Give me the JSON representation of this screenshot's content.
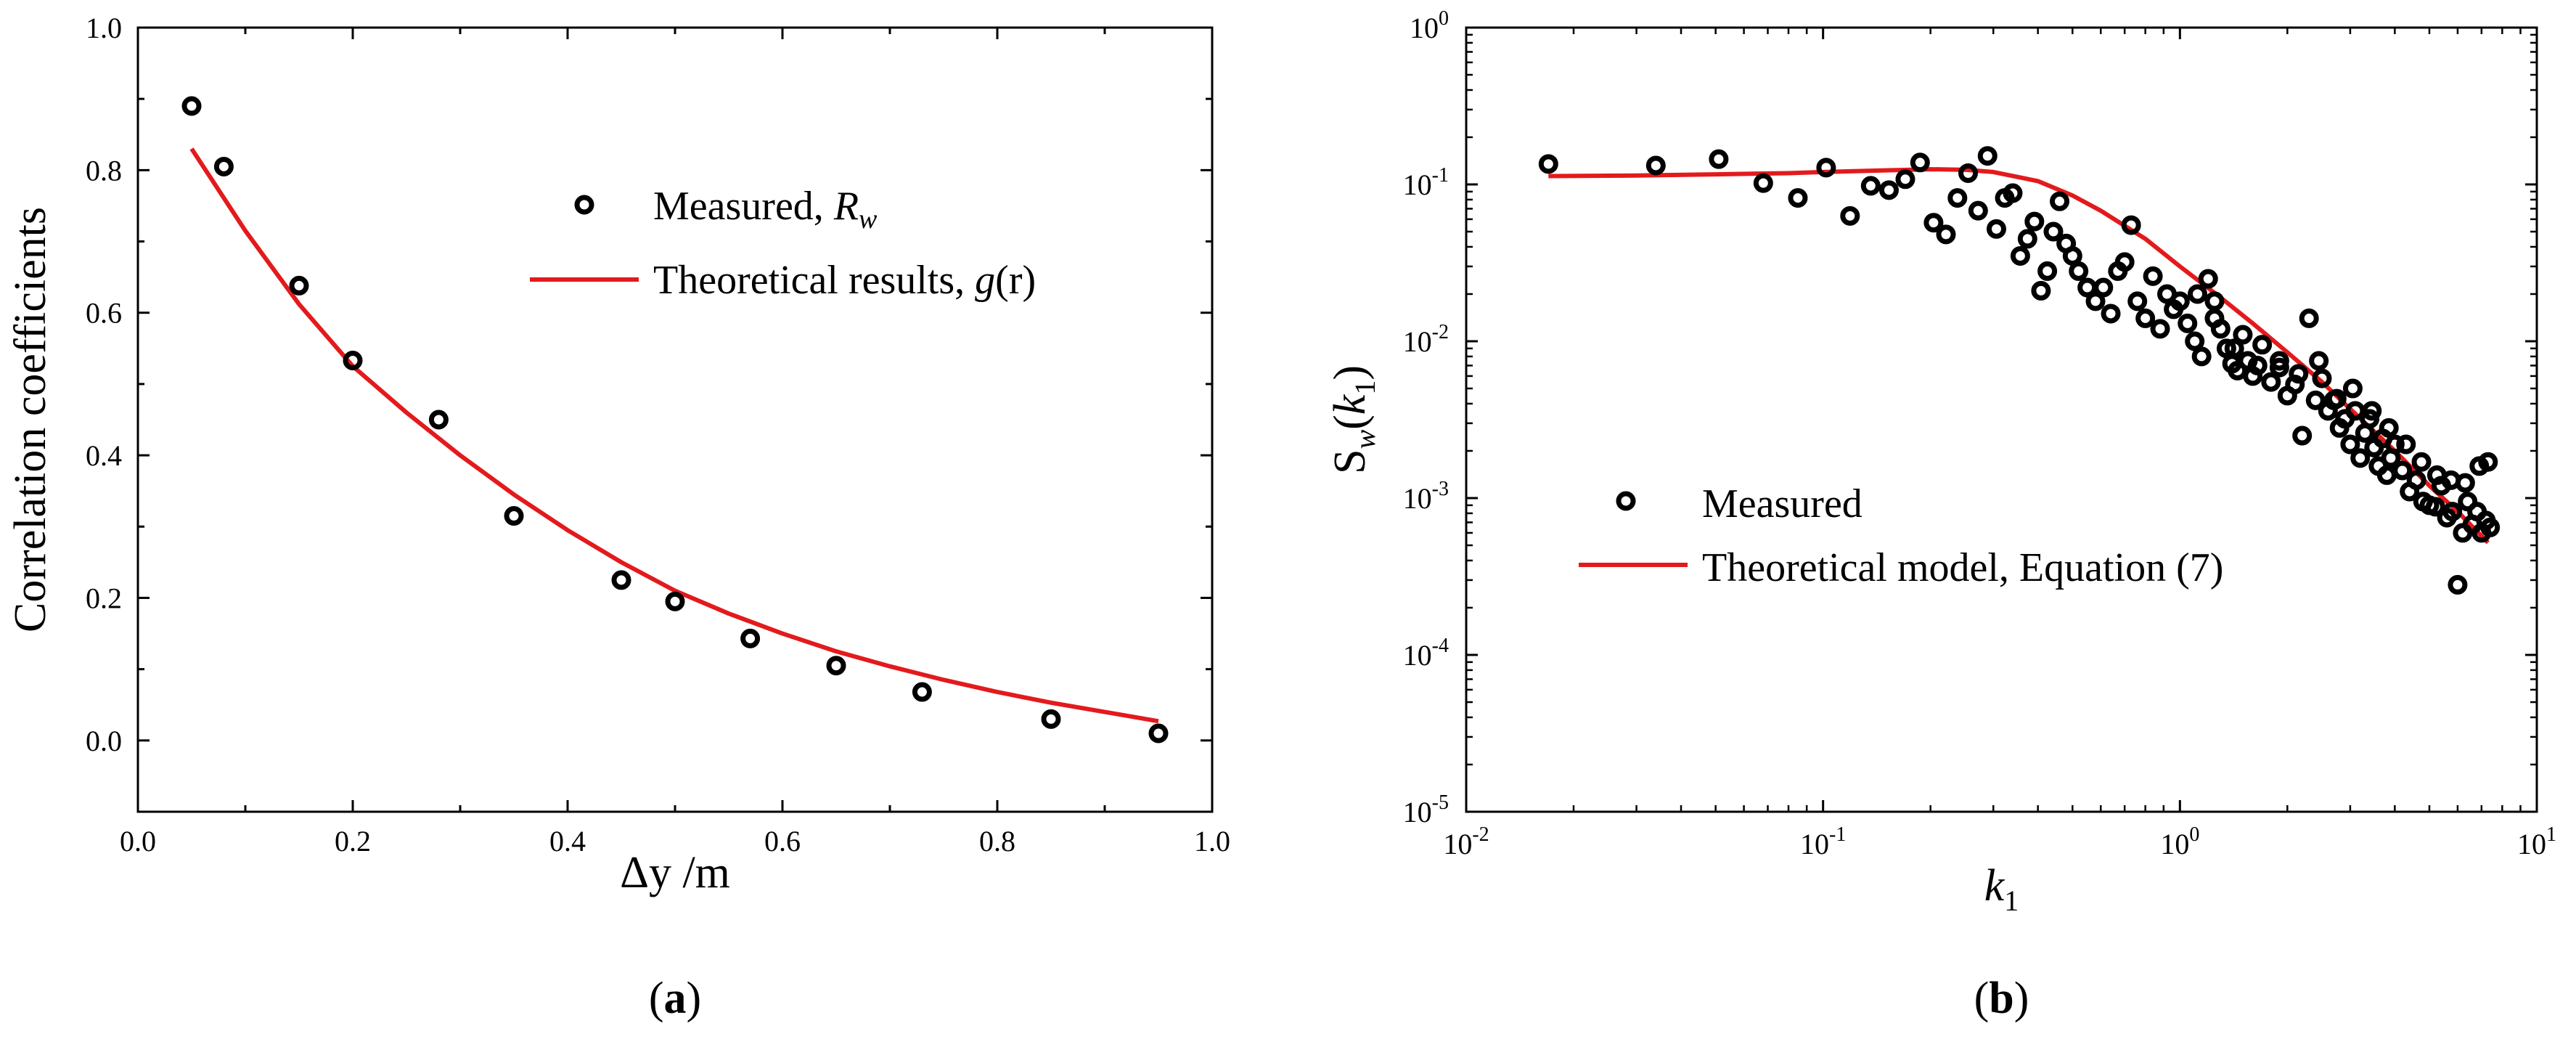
{
  "chart_data": [
    {
      "type": "scatter",
      "panel_label": "(a)",
      "panel_letter": "a",
      "xlabel": "Δy /m",
      "ylabel": "Correlation coefficients",
      "xlim": [
        0.0,
        1.0
      ],
      "ylim": [
        -0.1,
        1.0
      ],
      "xticks": [
        "0.0",
        "0.2",
        "0.4",
        "0.6",
        "0.8",
        "1.0"
      ],
      "xtick_values": [
        0.0,
        0.2,
        0.4,
        0.6,
        0.8,
        1.0
      ],
      "yticks": [
        "0.0",
        "0.2",
        "0.4",
        "0.6",
        "0.8",
        "1.0"
      ],
      "ytick_values": [
        0.0,
        0.2,
        0.4,
        0.6,
        0.8,
        1.0
      ],
      "legend_position": "upper-right",
      "series": [
        {
          "name": "Measured, R_w",
          "label_text": "Measured, ",
          "label_italic": "R",
          "label_sub": "w",
          "style": "markers",
          "color": "#000000",
          "x": [
            0.05,
            0.08,
            0.15,
            0.2,
            0.28,
            0.35,
            0.45,
            0.5,
            0.57,
            0.65,
            0.73,
            0.85,
            0.95
          ],
          "y": [
            0.89,
            0.805,
            0.638,
            0.533,
            0.45,
            0.315,
            0.225,
            0.195,
            0.143,
            0.105,
            0.068,
            0.03,
            0.01
          ]
        },
        {
          "name": "Theoretical results, g(r)",
          "label_text": "Theoretical results, ",
          "label_italic": "g",
          "label_rest": "(r)",
          "style": "line",
          "color": "#e31a1c",
          "x": [
            0.05,
            0.1,
            0.15,
            0.2,
            0.25,
            0.3,
            0.35,
            0.4,
            0.45,
            0.5,
            0.55,
            0.6,
            0.65,
            0.7,
            0.75,
            0.8,
            0.85,
            0.9,
            0.95
          ],
          "y": [
            0.83,
            0.715,
            0.612,
            0.525,
            0.46,
            0.4,
            0.345,
            0.295,
            0.25,
            0.21,
            0.178,
            0.15,
            0.125,
            0.104,
            0.085,
            0.068,
            0.053,
            0.04,
            0.027
          ]
        }
      ]
    },
    {
      "type": "scatter",
      "panel_label": "(b)",
      "panel_letter": "b",
      "xlabel": "k1",
      "xlabel_main": "k",
      "xlabel_sub": "1",
      "ylabel": "Sw(k1)",
      "ylabel_parts": {
        "main": "S",
        "sub1": "w",
        "open": "(",
        "k": "k",
        "sub2": "1",
        "close": ")"
      },
      "xscale": "log",
      "yscale": "log",
      "xlim": [
        0.01,
        10
      ],
      "ylim": [
        1e-05,
        1
      ],
      "xtick_values": [
        0.01,
        0.1,
        1,
        10
      ],
      "xticks": [
        {
          "base": "10",
          "exp": "-2"
        },
        {
          "base": "10",
          "exp": "-1"
        },
        {
          "base": "10",
          "exp": "0"
        },
        {
          "base": "10",
          "exp": "1"
        }
      ],
      "ytick_values": [
        1e-05,
        0.0001,
        0.001,
        0.01,
        0.1,
        1
      ],
      "yticks": [
        {
          "base": "10",
          "exp": "-5"
        },
        {
          "base": "10",
          "exp": "-4"
        },
        {
          "base": "10",
          "exp": "-3"
        },
        {
          "base": "10",
          "exp": "-2"
        },
        {
          "base": "10",
          "exp": "-1"
        },
        {
          "base": "10",
          "exp": "0"
        }
      ],
      "legend_position": "lower-left",
      "series": [
        {
          "name": "Measured",
          "label_text": "Measured",
          "style": "markers",
          "color": "#000000",
          "x": [
            0.017,
            0.034,
            0.051,
            0.068,
            0.085,
            0.102,
            0.119,
            0.136,
            0.153,
            0.17,
            0.187,
            0.204,
            0.221,
            0.238,
            0.255,
            0.272,
            0.289,
            0.306,
            0.323,
            0.34,
            0.357,
            0.374,
            0.391,
            0.408,
            0.425,
            0.442,
            0.46,
            0.48,
            0.5,
            0.52,
            0.55,
            0.58,
            0.61,
            0.64,
            0.67,
            0.7,
            0.73,
            0.76,
            0.8,
            0.84,
            0.88,
            0.92,
            0.96,
            1.0,
            1.05,
            1.1,
            1.15,
            1.2,
            1.25,
            1.3,
            1.35,
            1.4,
            1.45,
            1.5,
            1.55,
            1.6,
            1.7,
            1.8,
            1.9,
            2.0,
            2.1,
            2.2,
            2.3,
            2.4,
            2.5,
            2.6,
            2.7,
            2.8,
            2.9,
            3.0,
            3.1,
            3.2,
            3.3,
            3.4,
            3.5,
            3.6,
            3.7,
            3.8,
            3.9,
            4.0,
            4.2,
            4.4,
            4.6,
            4.8,
            5.0,
            5.2,
            5.4,
            5.6,
            5.8,
            6.0,
            6.2,
            6.4,
            6.6,
            6.8,
            7.0,
            7.2,
            7.4,
            1.12,
            1.25,
            1.42,
            1.65,
            1.9,
            2.15,
            2.45,
            2.75,
            3.05,
            3.45,
            3.85,
            4.3,
            4.75,
            5.25,
            5.75,
            6.3,
            6.9,
            7.3
          ],
          "y": [
            0.135,
            0.132,
            0.145,
            0.102,
            0.082,
            0.128,
            0.063,
            0.098,
            0.092,
            0.108,
            0.138,
            0.057,
            0.048,
            0.082,
            0.118,
            0.068,
            0.152,
            0.052,
            0.082,
            0.088,
            0.035,
            0.045,
            0.058,
            0.021,
            0.028,
            0.05,
            0.078,
            0.042,
            0.035,
            0.028,
            0.022,
            0.018,
            0.022,
            0.015,
            0.028,
            0.032,
            0.055,
            0.018,
            0.014,
            0.026,
            0.012,
            0.02,
            0.016,
            0.018,
            0.013,
            0.01,
            0.008,
            0.025,
            0.014,
            0.012,
            0.009,
            0.0072,
            0.0065,
            0.011,
            0.0075,
            0.006,
            0.0095,
            0.0055,
            0.0068,
            0.0045,
            0.0053,
            0.0025,
            0.014,
            0.0042,
            0.0058,
            0.0036,
            0.0042,
            0.0028,
            0.0032,
            0.0022,
            0.0036,
            0.0018,
            0.0026,
            0.0032,
            0.0021,
            0.0016,
            0.0024,
            0.0014,
            0.0018,
            0.0022,
            0.0015,
            0.0011,
            0.0013,
            0.00095,
            0.0009,
            0.00088,
            0.0012,
            0.00075,
            0.00082,
            0.00028,
            0.0006,
            0.00095,
            0.00068,
            0.00082,
            0.0006,
            0.00072,
            0.00065,
            0.02,
            0.018,
            0.009,
            0.007,
            0.0075,
            0.0062,
            0.0075,
            0.0043,
            0.005,
            0.0036,
            0.0028,
            0.0022,
            0.0017,
            0.0014,
            0.0013,
            0.00125,
            0.0016,
            0.0017
          ]
        },
        {
          "name": "Theoretical model, Equation (7)",
          "label_text": "Theoretical model, Equation (7)",
          "style": "line",
          "color": "#e31a1c",
          "x": [
            0.017,
            0.03,
            0.05,
            0.08,
            0.1,
            0.15,
            0.2,
            0.25,
            0.3,
            0.4,
            0.5,
            0.6,
            0.8,
            1.0,
            1.3,
            1.6,
            2.0,
            2.5,
            3.0,
            4.0,
            5.0,
            6.0,
            7.3
          ],
          "y": [
            0.113,
            0.114,
            0.116,
            0.118,
            0.12,
            0.123,
            0.125,
            0.124,
            0.12,
            0.105,
            0.085,
            0.068,
            0.045,
            0.03,
            0.019,
            0.013,
            0.0085,
            0.0055,
            0.0037,
            0.002,
            0.0012,
            0.00082,
            0.00052
          ]
        }
      ]
    }
  ]
}
